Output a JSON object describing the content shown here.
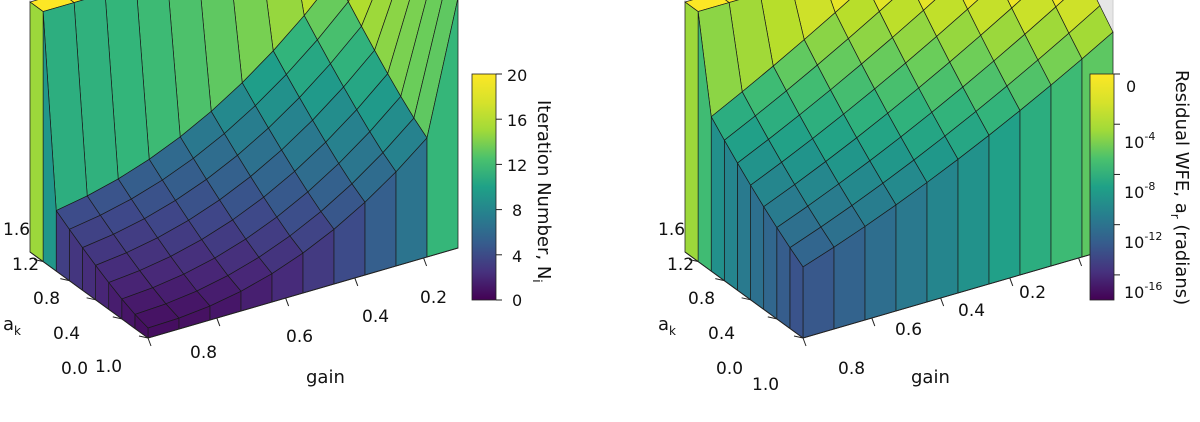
{
  "chart_data": [
    {
      "type": "surface3d",
      "title": "",
      "xlabel": "gain",
      "ylabel": "a_k",
      "ylabel_main": "a",
      "ylabel_sub": "k",
      "x_ticks": [
        "1.0",
        "0.8",
        "0.6",
        "0.4",
        "0.2"
      ],
      "y_ticks": [
        "0.0",
        "0.4",
        "0.8",
        "1.2",
        "1.6"
      ],
      "x_range": [
        0.1,
        1.0
      ],
      "y_range": [
        0.0,
        1.8
      ],
      "zlim": [
        0,
        20
      ],
      "z_scale": "linear",
      "z_min_value": 0,
      "z_max_value": 20,
      "colorbar": {
        "label": "Iteration Number, N",
        "label_sub": "i",
        "ticks": [
          {
            "label": "20",
            "value": 20
          },
          {
            "label": "16",
            "value": 16
          },
          {
            "label": "12",
            "value": 12
          },
          {
            "label": "8",
            "value": 8
          },
          {
            "label": "4",
            "value": 4
          },
          {
            "label": "0",
            "value": 0
          }
        ]
      }
    },
    {
      "type": "surface3d",
      "title": "",
      "xlabel": "gain",
      "ylabel": "a_k",
      "ylabel_main": "a",
      "ylabel_sub": "k",
      "x_ticks": [
        "1.0",
        "0.8",
        "0.6",
        "0.4",
        "0.2"
      ],
      "y_ticks": [
        "0.0",
        "0.4",
        "0.8",
        "1.2",
        "1.6"
      ],
      "x_range": [
        0.1,
        1.0
      ],
      "y_range": [
        0.0,
        1.8
      ],
      "zlim": [
        -18,
        0
      ],
      "z_scale": "log10",
      "z_min_value": -18,
      "z_max_value": 0,
      "colorbar": {
        "label": "Residual WFE, a",
        "label_sub": "r",
        "label_suffix": " (radians)",
        "ticks": [
          {
            "label": "0",
            "base": "",
            "exp": "",
            "value": 0
          },
          {
            "label": "10-4",
            "base": "10",
            "exp": "-4",
            "value": -4
          },
          {
            "label": "10-8",
            "base": "10",
            "exp": "-8",
            "value": -8
          },
          {
            "label": "10-12",
            "base": "10",
            "exp": "-12",
            "value": -12
          },
          {
            "label": "10-16",
            "base": "10",
            "exp": "-16",
            "value": -16
          }
        ]
      }
    }
  ]
}
